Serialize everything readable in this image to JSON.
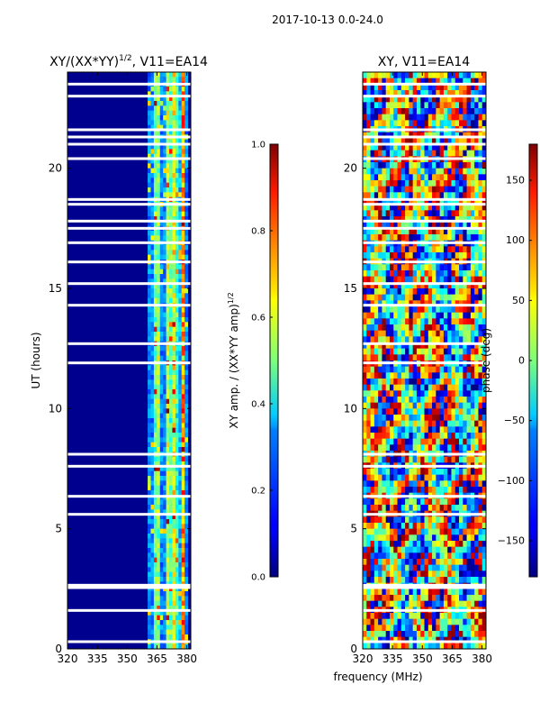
{
  "figure_title": "2017-10-13 0.0-24.0",
  "shared_xlabel": "frequency (MHz)",
  "colors": {
    "background_fill": "#00008f",
    "flag_color": "#ffffff"
  },
  "chart_data": [
    {
      "type": "heatmap",
      "title_prefix": "XY/(XX*YY)",
      "title_exp": "1/2",
      "title_suffix": ", V11=EA14",
      "xlabel": "",
      "ylabel": "UT (hours)",
      "xlim": [
        320,
        382
      ],
      "ylim": [
        0,
        24
      ],
      "xticks": [
        320,
        335,
        350,
        365,
        380
      ],
      "yticks": [
        0,
        5,
        10,
        15,
        20
      ],
      "colorbar": {
        "label_prefix": "XY amp. / (XX*YY amp)",
        "label_exp": "1/2",
        "range": [
          0.0,
          1.0
        ],
        "ticks": [
          "0.0",
          "0.2",
          "0.4",
          "0.6",
          "0.8",
          "1.0"
        ],
        "colormap": "jet"
      },
      "active_band_mhz": [
        361,
        381
      ],
      "peak_channels_mhz": [
        365,
        371,
        374,
        378
      ],
      "flagged_ut_hours": [
        0.3,
        1.6,
        2.55,
        2.65,
        5.6,
        6.35,
        7.6,
        8.1,
        11.9,
        12.7,
        14.3,
        15.2,
        16.1,
        16.9,
        17.5,
        17.8,
        18.5,
        18.7,
        20.4,
        21.0,
        21.3,
        21.6,
        23.0,
        23.5
      ]
    },
    {
      "type": "heatmap",
      "title": "XY, V11=EA14",
      "xlabel": "frequency (MHz)",
      "ylabel": "",
      "xlim": [
        320,
        382
      ],
      "ylim": [
        0,
        24
      ],
      "xticks": [
        320,
        335,
        350,
        365,
        380
      ],
      "yticks": [
        0,
        5,
        10,
        15,
        20
      ],
      "colorbar": {
        "label": "phase (deg)",
        "range": [
          -180,
          180
        ],
        "ticks": [
          "−150",
          "−100",
          "−50",
          "0",
          "50",
          "100",
          "150"
        ],
        "tick_values": [
          -150,
          -100,
          -50,
          0,
          50,
          100,
          150
        ],
        "colormap": "jet"
      },
      "flagged_ut_hours": [
        0.3,
        1.6,
        2.55,
        2.65,
        5.6,
        6.35,
        7.6,
        8.1,
        11.9,
        12.7,
        14.3,
        15.2,
        16.1,
        16.9,
        17.5,
        17.8,
        18.5,
        18.7,
        20.4,
        21.0,
        21.3,
        21.6,
        23.0,
        23.5
      ]
    }
  ]
}
